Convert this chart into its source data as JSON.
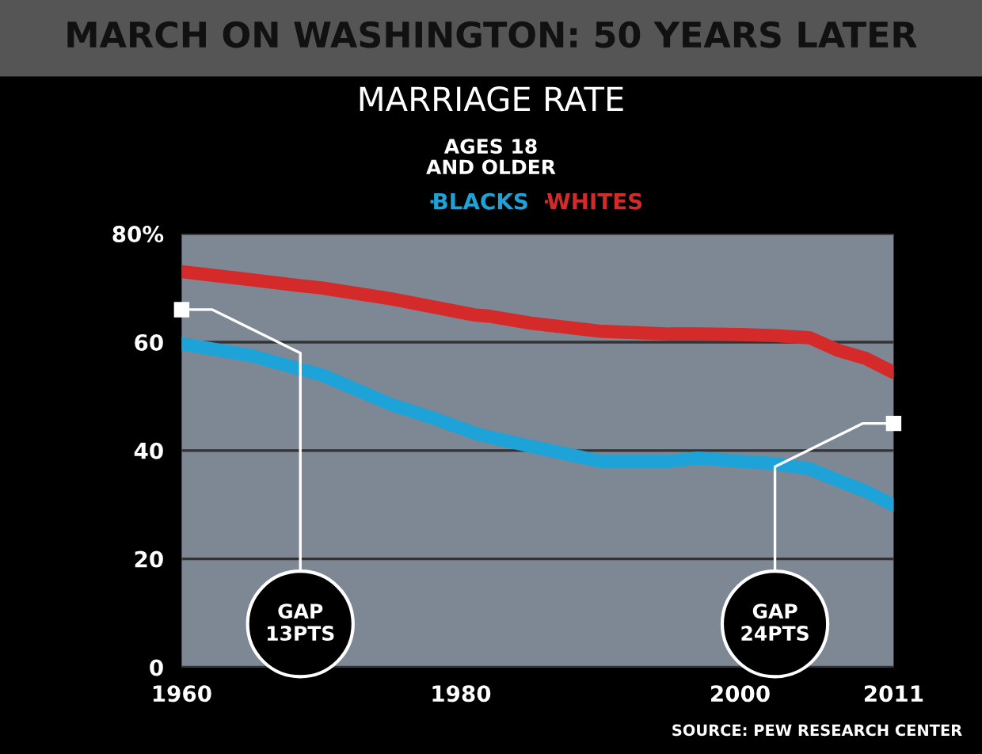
{
  "chart_data": {
    "type": "line",
    "title": "MARCH ON WASHINGTON: 50 YEARS LATER",
    "subtitle": "MARRIAGE RATE",
    "x": [
      1960,
      1965,
      1968.5,
      1970,
      1975,
      1978,
      1981,
      1982,
      1985,
      1990,
      1995,
      1997,
      2000,
      2002.5,
      2005,
      2007,
      2009,
      2011
    ],
    "series": [
      {
        "name": "BLACKS",
        "color": "#1ea3d8",
        "values": [
          59.7,
          57.5,
          55,
          54,
          48.5,
          46,
          43.2,
          42.5,
          40.8,
          38,
          38,
          38.6,
          38,
          37.6,
          36.6,
          34.5,
          32.5,
          29.9
        ]
      },
      {
        "name": "WHITES",
        "color": "#d42a2a",
        "values": [
          73,
          71.5,
          70.4,
          70,
          68,
          66.5,
          65,
          64.8,
          63.5,
          62,
          61.5,
          61.5,
          61.4,
          61.2,
          60.8,
          58.5,
          57,
          54.4
        ]
      }
    ],
    "xlim": [
      1960,
      2011
    ],
    "xticks": [
      1960,
      1980,
      2000,
      2011
    ],
    "ylim": [
      0,
      80
    ],
    "yticks": [
      0,
      20,
      40,
      60,
      {
        "value": 80,
        "label": "80%"
      }
    ],
    "grid": "y",
    "legend": "top",
    "line_style": "solid",
    "annotations": [
      "AGES 18\nAND OLDER",
      {
        "text": "GAP\n13PTS",
        "x": 1960,
        "y": 66
      },
      {
        "text": "GAP\n24PTS",
        "x": 2011,
        "y": 45
      },
      "SOURCE: PEW RESEARCH CENTER"
    ]
  }
}
